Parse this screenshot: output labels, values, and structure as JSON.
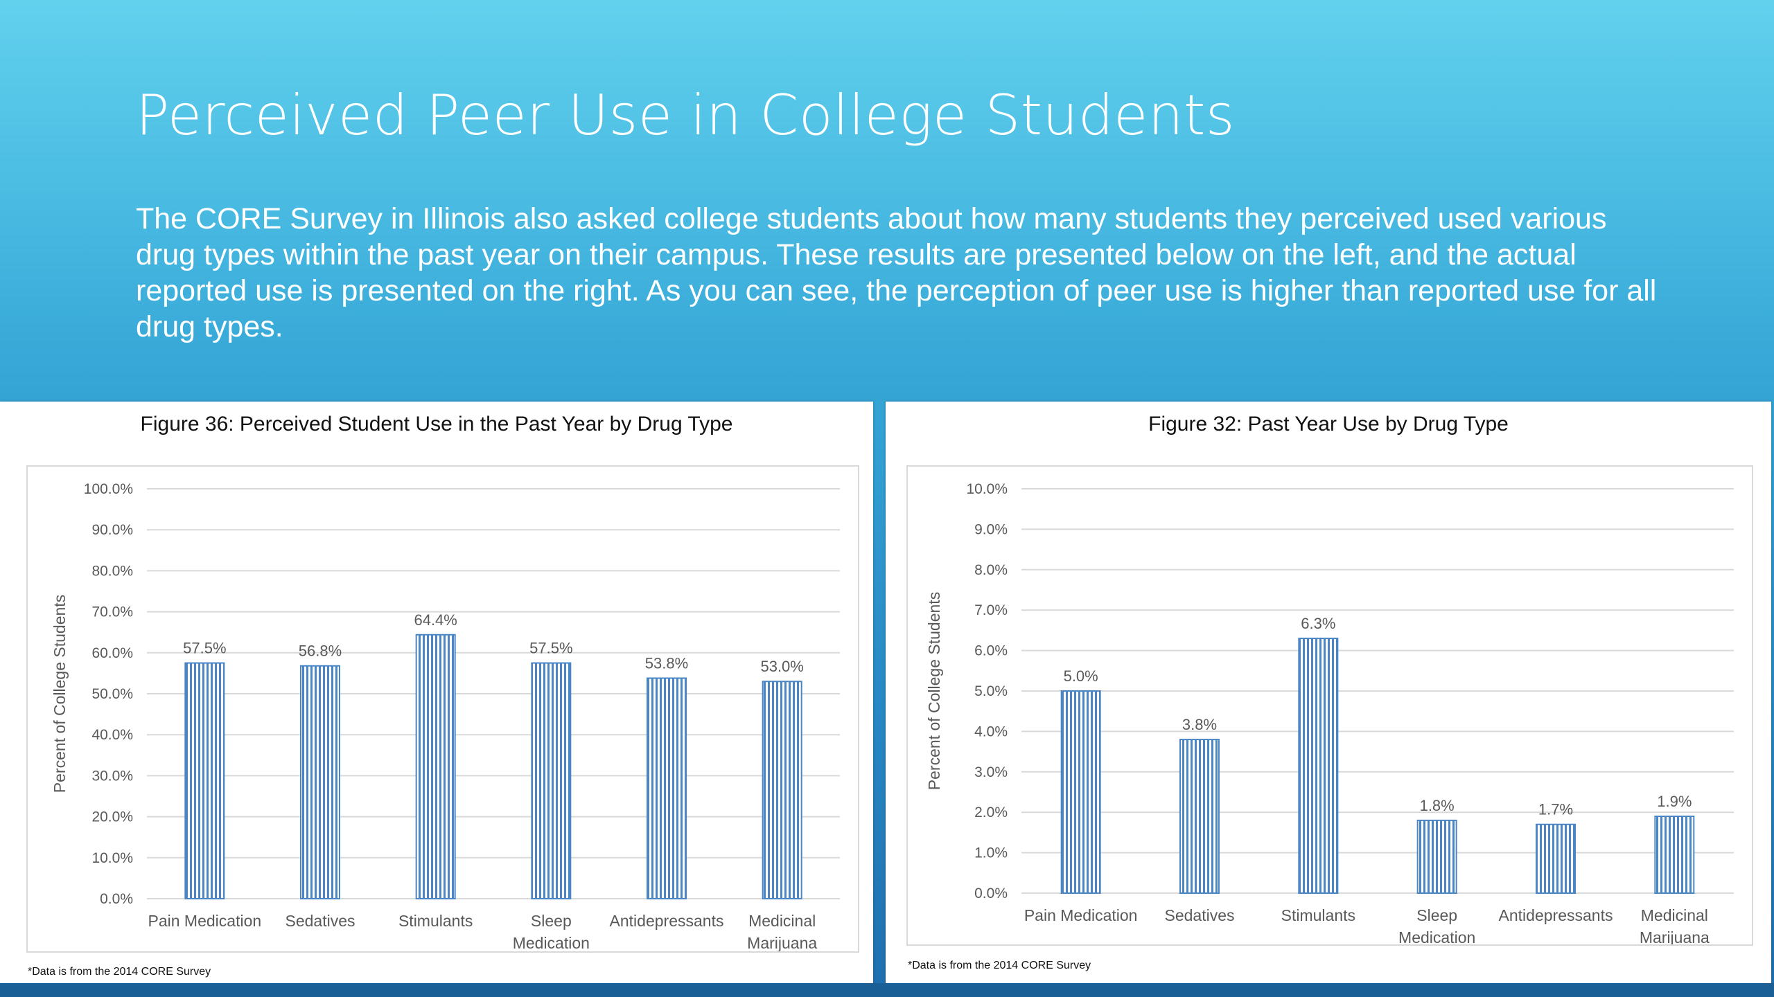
{
  "slide": {
    "title": "Perceived Peer Use in College Students",
    "body": "The CORE Survey in Illinois also asked college students about how many students they perceived used various drug types within the past year on their campus. These results are presented below on the left, and the actual reported use is presented on the right. As you can see, the perception of peer use is higher than reported use for all drug types."
  },
  "colors": {
    "bar_stroke": "#4a86c5",
    "bar_fill": "#ffffff",
    "grid": "#d9d9d9",
    "axis_text": "#595959"
  },
  "figures": [
    {
      "title": "Figure 36: Perceived Student Use in the Past Year by Drug Type",
      "footnote": "*Data is from the 2014 CORE Survey"
    },
    {
      "title": "Figure 32: Past Year Use by Drug Type",
      "footnote": "*Data is from the 2014 CORE Survey"
    }
  ],
  "chart_data": [
    {
      "type": "bar",
      "title": "Figure 36: Perceived Student Use in the Past Year by Drug Type",
      "ylabel": "Percent of College Students",
      "xlabel": "",
      "categories": [
        "Pain Medication",
        "Sedatives",
        "Stimulants",
        "Sleep Medication",
        "Antidepressants",
        "Medicinal Marijuana"
      ],
      "category_lines": [
        [
          "Pain Medication"
        ],
        [
          "Sedatives"
        ],
        [
          "Stimulants"
        ],
        [
          "Sleep",
          "Medication"
        ],
        [
          "Antidepressants"
        ],
        [
          "Medicinal",
          "Marijuana"
        ]
      ],
      "values": [
        57.5,
        56.8,
        64.4,
        57.5,
        53.8,
        53.0
      ],
      "data_labels": [
        "57.5%",
        "56.8%",
        "64.4%",
        "57.5%",
        "53.8%",
        "53.0%"
      ],
      "ylim": [
        0,
        100
      ],
      "yticks": [
        "0.0%",
        "10.0%",
        "20.0%",
        "30.0%",
        "40.0%",
        "50.0%",
        "60.0%",
        "70.0%",
        "80.0%",
        "90.0%",
        "100.0%"
      ],
      "grid": true,
      "pattern": "vertical-stripes"
    },
    {
      "type": "bar",
      "title": "Figure 32: Past Year Use by Drug Type",
      "ylabel": "Percent of College Students",
      "xlabel": "",
      "categories": [
        "Pain Medication",
        "Sedatives",
        "Stimulants",
        "Sleep Medication",
        "Antidepressants",
        "Medicinal Marijuana"
      ],
      "category_lines": [
        [
          "Pain Medication"
        ],
        [
          "Sedatives"
        ],
        [
          "Stimulants"
        ],
        [
          "Sleep",
          "Medication"
        ],
        [
          "Antidepressants"
        ],
        [
          "Medicinal",
          "Marijuana"
        ]
      ],
      "values": [
        5.0,
        3.8,
        6.3,
        1.8,
        1.7,
        1.9
      ],
      "data_labels": [
        "5.0%",
        "3.8%",
        "6.3%",
        "1.8%",
        "1.7%",
        "1.9%"
      ],
      "ylim": [
        0,
        10
      ],
      "yticks": [
        "0.0%",
        "1.0%",
        "2.0%",
        "3.0%",
        "4.0%",
        "5.0%",
        "6.0%",
        "7.0%",
        "8.0%",
        "9.0%",
        "10.0%"
      ],
      "grid": true,
      "pattern": "vertical-stripes"
    }
  ]
}
